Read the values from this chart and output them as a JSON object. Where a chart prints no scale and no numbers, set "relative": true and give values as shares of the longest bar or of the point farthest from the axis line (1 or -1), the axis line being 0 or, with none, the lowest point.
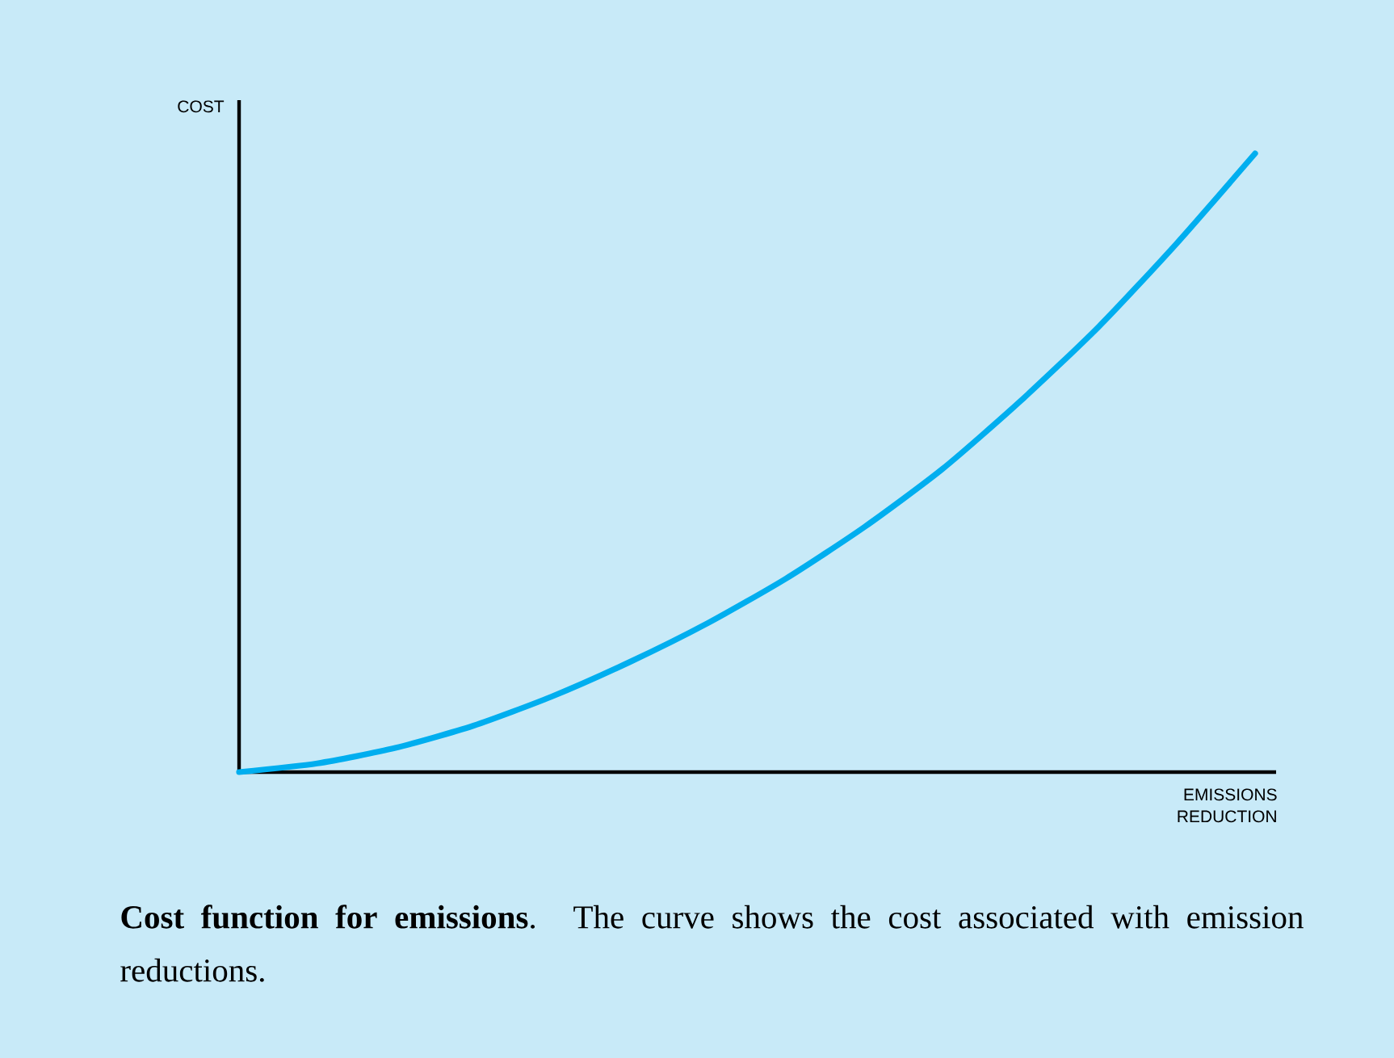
{
  "chart_data": {
    "type": "line",
    "relative": true,
    "xlabel": "EMISSIONS REDUCTION",
    "ylabel": "COST",
    "categories": [
      null,
      null,
      null,
      null,
      null,
      null,
      null,
      null,
      null,
      null,
      null,
      null,
      null,
      null
    ],
    "series": [
      {
        "color": "#00aeef",
        "values": [
          0,
          0.014,
          0.039,
          0.075,
          0.122,
          0.178,
          0.241,
          0.313,
          0.396,
          0.49,
          0.6,
          0.72,
          0.855,
          1
        ]
      }
    ],
    "annotations": [
      "**Cost function for emissions**.   The curve shows the cost associated with emission reductions."
    ]
  }
}
